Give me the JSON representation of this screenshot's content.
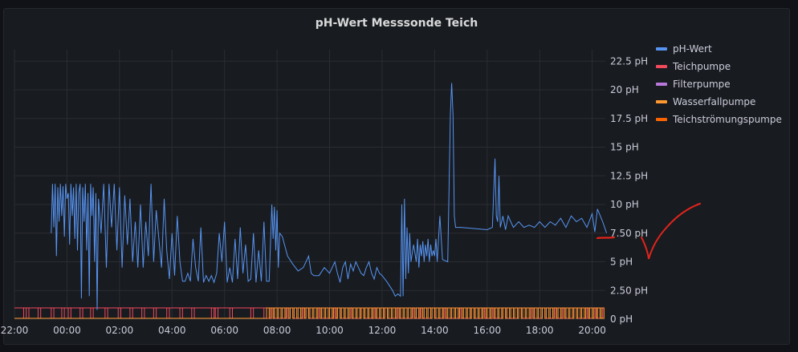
{
  "panel": {
    "title": "pH-Wert Messsonde Teich"
  },
  "chart_data": {
    "type": "line",
    "title": "pH-Wert Messsonde Teich",
    "x_ticks": [
      "22:00",
      "00:00",
      "02:00",
      "04:00",
      "06:00",
      "08:00",
      "10:00",
      "12:00",
      "14:00",
      "16:00",
      "18:00",
      "20:00"
    ],
    "y_ticks": [
      "0 pH",
      "2.50 pH",
      "5 pH",
      "7.50 pH",
      "10 pH",
      "12.5 pH",
      "15 pH",
      "17.5 pH",
      "20 pH",
      "22.5 pH"
    ],
    "ylim": [
      0,
      23.5
    ],
    "x_range_hours": [
      -2.0,
      20.5
    ],
    "grid": true,
    "legend_position": "right",
    "series": [
      {
        "name": "pH-Wert",
        "color": "#5794f2",
        "points": [
          [
            -0.6,
            7.5
          ],
          [
            -0.55,
            11.8
          ],
          [
            -0.5,
            8.0
          ],
          [
            -0.45,
            11.8
          ],
          [
            -0.4,
            5.5
          ],
          [
            -0.35,
            11.5
          ],
          [
            -0.3,
            8.5
          ],
          [
            -0.25,
            11.8
          ],
          [
            -0.2,
            9.0
          ],
          [
            -0.15,
            11.6
          ],
          [
            -0.1,
            7.2
          ],
          [
            -0.05,
            11.8
          ],
          [
            0.0,
            10.5
          ],
          [
            0.05,
            11.0
          ],
          [
            0.1,
            6.5
          ],
          [
            0.15,
            11.8
          ],
          [
            0.2,
            9.0
          ],
          [
            0.25,
            11.5
          ],
          [
            0.3,
            7.0
          ],
          [
            0.35,
            11.8
          ],
          [
            0.4,
            6.0
          ],
          [
            0.45,
            11.0
          ],
          [
            0.5,
            11.8
          ],
          [
            0.55,
            1.8
          ],
          [
            0.6,
            11.5
          ],
          [
            0.65,
            8.5
          ],
          [
            0.7,
            11.8
          ],
          [
            0.75,
            6.0
          ],
          [
            0.8,
            11.0
          ],
          [
            0.85,
            2.0
          ],
          [
            0.9,
            11.8
          ],
          [
            0.95,
            9.0
          ],
          [
            1.0,
            11.5
          ],
          [
            1.05,
            5.0
          ],
          [
            1.1,
            11.0
          ],
          [
            1.15,
            0.8
          ],
          [
            1.2,
            10.5
          ],
          [
            1.3,
            7.5
          ],
          [
            1.4,
            11.8
          ],
          [
            1.5,
            4.5
          ],
          [
            1.6,
            11.8
          ],
          [
            1.7,
            8.0
          ],
          [
            1.8,
            11.8
          ],
          [
            1.9,
            6.0
          ],
          [
            2.0,
            11.5
          ],
          [
            2.1,
            4.5
          ],
          [
            2.2,
            10.8
          ],
          [
            2.3,
            6.5
          ],
          [
            2.4,
            10.5
          ],
          [
            2.5,
            5.0
          ],
          [
            2.6,
            8.5
          ],
          [
            2.7,
            4.5
          ],
          [
            2.8,
            10.0
          ],
          [
            2.9,
            4.5
          ],
          [
            3.0,
            8.5
          ],
          [
            3.1,
            5.5
          ],
          [
            3.2,
            11.8
          ],
          [
            3.3,
            5.0
          ],
          [
            3.4,
            9.5
          ],
          [
            3.5,
            7.0
          ],
          [
            3.6,
            4.5
          ],
          [
            3.7,
            10.5
          ],
          [
            3.8,
            6.0
          ],
          [
            3.9,
            3.5
          ],
          [
            4.0,
            7.5
          ],
          [
            4.1,
            3.8
          ],
          [
            4.2,
            9.0
          ],
          [
            4.3,
            5.0
          ],
          [
            4.4,
            3.3
          ],
          [
            4.5,
            3.3
          ],
          [
            4.6,
            4.0
          ],
          [
            4.7,
            3.3
          ],
          [
            4.8,
            7.0
          ],
          [
            4.9,
            4.5
          ],
          [
            5.0,
            3.3
          ],
          [
            5.1,
            8.0
          ],
          [
            5.2,
            3.2
          ],
          [
            5.3,
            3.8
          ],
          [
            5.4,
            3.3
          ],
          [
            5.5,
            3.8
          ],
          [
            5.6,
            3.2
          ],
          [
            5.7,
            4.0
          ],
          [
            5.8,
            7.5
          ],
          [
            5.9,
            5.0
          ],
          [
            6.0,
            8.5
          ],
          [
            6.1,
            3.2
          ],
          [
            6.2,
            4.5
          ],
          [
            6.3,
            3.2
          ],
          [
            6.4,
            7.0
          ],
          [
            6.5,
            3.5
          ],
          [
            6.6,
            8.0
          ],
          [
            6.7,
            4.0
          ],
          [
            6.8,
            6.5
          ],
          [
            6.9,
            3.3
          ],
          [
            7.0,
            3.5
          ],
          [
            7.1,
            7.5
          ],
          [
            7.2,
            3.2
          ],
          [
            7.3,
            6.0
          ],
          [
            7.4,
            3.3
          ],
          [
            7.5,
            8.5
          ],
          [
            7.6,
            3.3
          ],
          [
            7.7,
            3.3
          ],
          [
            7.8,
            10.0
          ],
          [
            7.85,
            7.0
          ],
          [
            7.9,
            9.8
          ],
          [
            7.95,
            6.0
          ],
          [
            8.0,
            9.5
          ],
          [
            8.05,
            4.5
          ],
          [
            8.1,
            7.5
          ],
          [
            8.2,
            7.2
          ],
          [
            8.4,
            5.5
          ],
          [
            8.6,
            4.8
          ],
          [
            8.8,
            4.2
          ],
          [
            9.0,
            4.5
          ],
          [
            9.2,
            5.5
          ],
          [
            9.3,
            4.0
          ],
          [
            9.4,
            3.8
          ],
          [
            9.6,
            3.8
          ],
          [
            9.8,
            4.5
          ],
          [
            10.0,
            4.0
          ],
          [
            10.2,
            5.0
          ],
          [
            10.3,
            4.0
          ],
          [
            10.4,
            3.2
          ],
          [
            10.5,
            4.5
          ],
          [
            10.6,
            5.0
          ],
          [
            10.7,
            3.5
          ],
          [
            10.8,
            4.8
          ],
          [
            10.9,
            4.2
          ],
          [
            11.0,
            5.0
          ],
          [
            11.1,
            4.5
          ],
          [
            11.2,
            4.0
          ],
          [
            11.3,
            3.8
          ],
          [
            11.4,
            4.5
          ],
          [
            11.5,
            5.0
          ],
          [
            11.6,
            4.0
          ],
          [
            11.7,
            3.5
          ],
          [
            11.8,
            4.5
          ],
          [
            11.9,
            4.0
          ],
          [
            12.0,
            3.8
          ],
          [
            12.2,
            3.2
          ],
          [
            12.4,
            2.5
          ],
          [
            12.5,
            2.0
          ],
          [
            12.6,
            2.2
          ],
          [
            12.7,
            2.0
          ],
          [
            12.75,
            10.0
          ],
          [
            12.8,
            2.0
          ],
          [
            12.85,
            10.5
          ],
          [
            12.9,
            3.5
          ],
          [
            12.95,
            8.0
          ],
          [
            13.0,
            4.0
          ],
          [
            13.05,
            7.5
          ],
          [
            13.1,
            5.0
          ],
          [
            13.2,
            6.5
          ],
          [
            13.3,
            5.0
          ],
          [
            13.35,
            7.0
          ],
          [
            13.4,
            4.5
          ],
          [
            13.45,
            6.5
          ],
          [
            13.5,
            5.5
          ],
          [
            13.55,
            6.8
          ],
          [
            13.6,
            5.0
          ],
          [
            13.65,
            6.5
          ],
          [
            13.7,
            5.5
          ],
          [
            13.75,
            7.0
          ],
          [
            13.8,
            5.0
          ],
          [
            13.85,
            6.5
          ],
          [
            13.9,
            5.5
          ],
          [
            13.95,
            6.0
          ],
          [
            14.0,
            5.5
          ],
          [
            14.05,
            7.0
          ],
          [
            14.1,
            5.0
          ],
          [
            14.2,
            9.0
          ],
          [
            14.3,
            5.2
          ],
          [
            14.5,
            5.0
          ],
          [
            14.6,
            17.8
          ],
          [
            14.65,
            20.6
          ],
          [
            14.7,
            17.8
          ],
          [
            14.75,
            9.0
          ],
          [
            14.8,
            8.0
          ],
          [
            15.0,
            8.0
          ],
          [
            15.5,
            7.9
          ],
          [
            16.0,
            7.8
          ],
          [
            16.2,
            8.0
          ],
          [
            16.3,
            14.0
          ],
          [
            16.35,
            9.0
          ],
          [
            16.4,
            8.5
          ],
          [
            16.45,
            12.5
          ],
          [
            16.5,
            8.0
          ],
          [
            16.6,
            9.0
          ],
          [
            16.7,
            7.8
          ],
          [
            16.8,
            9.0
          ],
          [
            16.9,
            8.5
          ],
          [
            17.0,
            8.0
          ],
          [
            17.2,
            8.5
          ],
          [
            17.4,
            8.0
          ],
          [
            17.6,
            8.2
          ],
          [
            17.8,
            8.0
          ],
          [
            18.0,
            8.5
          ],
          [
            18.2,
            8.0
          ],
          [
            18.4,
            8.5
          ],
          [
            18.6,
            8.2
          ],
          [
            18.8,
            8.8
          ],
          [
            19.0,
            8.0
          ],
          [
            19.2,
            9.0
          ],
          [
            19.4,
            8.5
          ],
          [
            19.6,
            8.8
          ],
          [
            19.8,
            8.0
          ],
          [
            20.0,
            9.2
          ],
          [
            20.1,
            7.6
          ],
          [
            20.2,
            9.6
          ],
          [
            20.4,
            8.5
          ],
          [
            20.55,
            7.5
          ]
        ]
      },
      {
        "name": "Teichpumpe",
        "color": "#f2495c"
      },
      {
        "name": "Filterpumpe",
        "color": "#b877d9"
      },
      {
        "name": "Wasserfallpumpe",
        "color": "#ff9830"
      },
      {
        "name": "Teichströmungspumpe",
        "color": "#fa6400"
      }
    ],
    "pump_steps_red": [
      -1.65,
      -1.55,
      -1.1,
      -0.6,
      0.05,
      -0.2,
      0.5,
      0.9,
      1.45,
      1.95,
      2.4,
      2.85,
      3.3,
      3.8,
      4.3,
      4.75,
      5.5,
      5.65,
      6.2,
      7.0,
      7.5,
      7.8,
      8.3,
      8.5,
      9.0,
      9.1,
      9.6,
      10.1,
      10.3,
      10.8,
      11.2,
      11.7,
      12.1,
      12.6,
      13.1,
      13.4,
      13.9,
      14.3,
      14.9,
      15.4,
      15.8,
      16.2,
      16.6,
      17.2,
      17.7,
      18.1,
      18.5,
      18.9,
      19.3,
      19.8,
      20.1,
      20.3
    ],
    "pump_steps_orange": [
      7.6,
      7.75,
      7.9,
      8.05,
      8.2,
      8.35,
      8.5,
      8.65,
      8.8,
      8.95,
      9.1,
      9.25,
      9.4,
      9.55,
      9.7,
      9.85,
      10.0,
      10.15,
      10.3,
      10.45,
      10.6,
      10.75,
      10.9,
      11.05,
      11.2,
      11.35,
      11.5,
      11.65,
      11.8,
      11.95,
      12.1,
      12.25,
      12.4,
      12.55,
      12.7,
      12.85,
      13.0,
      13.15,
      13.3,
      13.45,
      13.6,
      13.75,
      13.9,
      14.05,
      14.2,
      14.35,
      14.5,
      14.65,
      14.8,
      14.95,
      15.1,
      15.25,
      15.4,
      15.55,
      15.7,
      15.85,
      16.0,
      16.15,
      16.3,
      16.45,
      16.6,
      16.75,
      16.9,
      17.05,
      17.2,
      17.35,
      17.5,
      17.65,
      17.8,
      17.95,
      18.1,
      18.25,
      18.4,
      18.55,
      18.7,
      18.85,
      19.0,
      19.15,
      19.3,
      19.45,
      19.6,
      19.75,
      19.9,
      20.05,
      20.2,
      20.35
    ]
  }
}
